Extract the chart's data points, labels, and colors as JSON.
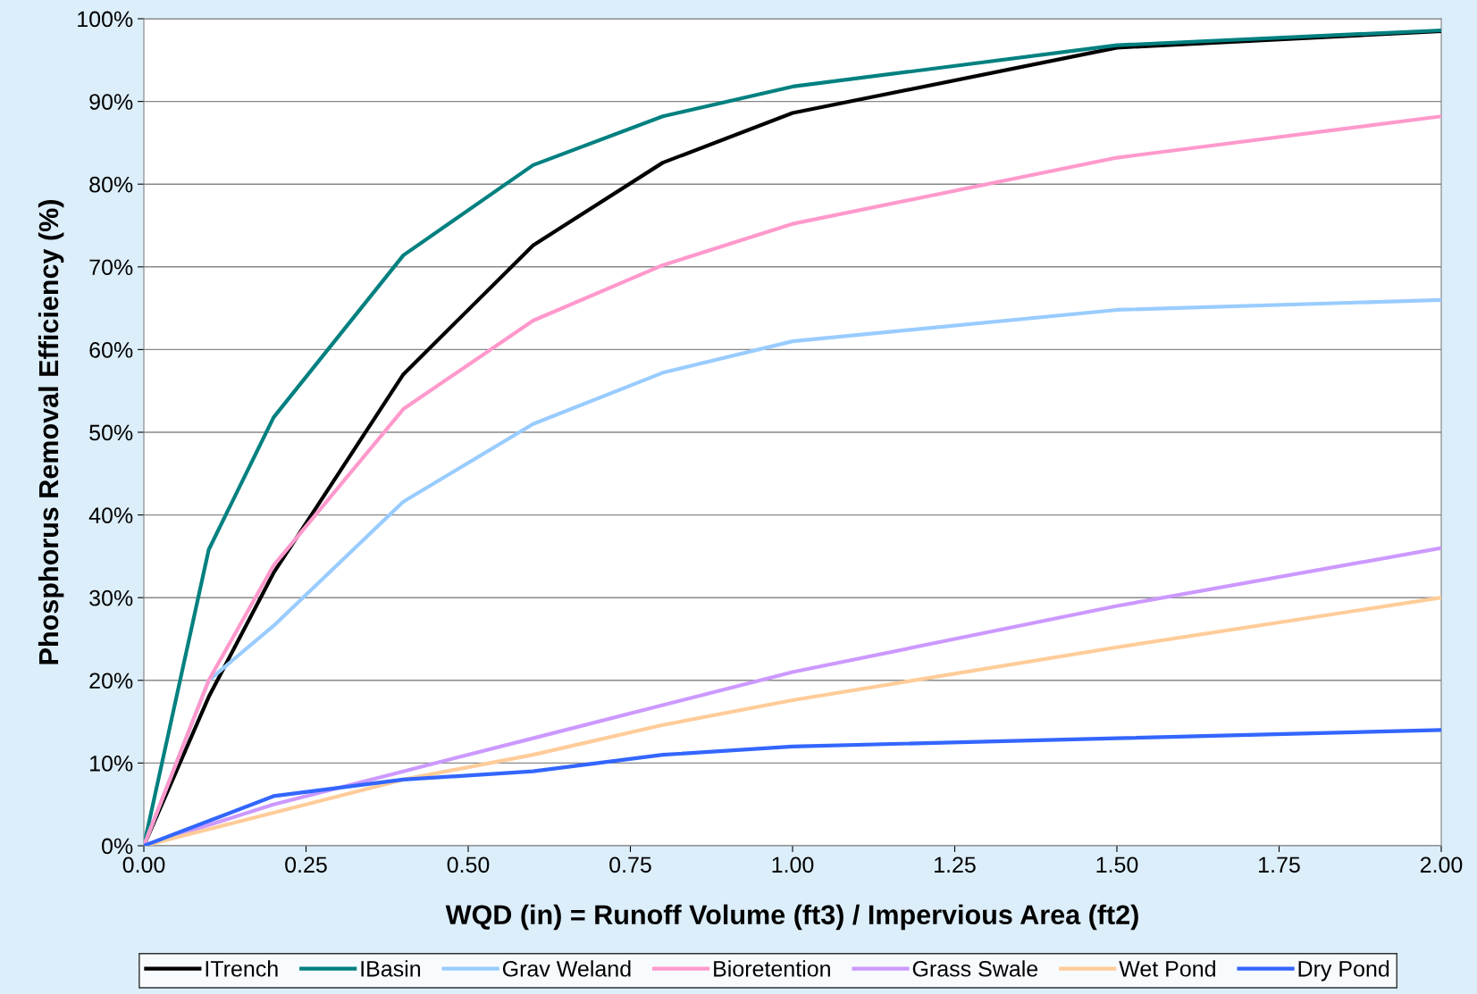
{
  "chart_data": {
    "type": "line",
    "xlabel": "WQD (in) = Runoff Volume (ft3) / Impervious Area (ft2)",
    "ylabel": "Phosphorus Removal Efficiency (%)",
    "x": [
      0,
      0.1,
      0.2,
      0.4,
      0.6,
      0.8,
      1.0,
      1.5,
      2.0
    ],
    "xlim": [
      0,
      2
    ],
    "xticks": [
      {
        "value": 0,
        "label": "0.00"
      },
      {
        "value": 0.25,
        "label": "0.25"
      },
      {
        "value": 0.5,
        "label": "0.50"
      },
      {
        "value": 0.75,
        "label": "0.75"
      },
      {
        "value": 1,
        "label": "1.00"
      },
      {
        "value": 1.25,
        "label": "1.25"
      },
      {
        "value": 1.5,
        "label": "1.50"
      },
      {
        "value": 1.75,
        "label": "1.75"
      },
      {
        "value": 2,
        "label": "2.00"
      }
    ],
    "ylim": [
      0,
      100
    ],
    "yticks": [
      {
        "value": 0,
        "label": "0%"
      },
      {
        "value": 10,
        "label": "10%"
      },
      {
        "value": 20,
        "label": "20%"
      },
      {
        "value": 30,
        "label": "30%"
      },
      {
        "value": 40,
        "label": "40%"
      },
      {
        "value": 50,
        "label": "50%"
      },
      {
        "value": 60,
        "label": "60%"
      },
      {
        "value": 70,
        "label": "70%"
      },
      {
        "value": 80,
        "label": "80%"
      },
      {
        "value": 90,
        "label": "90%"
      },
      {
        "value": 100,
        "label": "100%"
      }
    ],
    "grid": "y",
    "legend": "bottom",
    "marker": "none",
    "line_style": "solid",
    "series": [
      {
        "name": "ITrench",
        "color": "#000000",
        "values": [
          0,
          18,
          33,
          57,
          72.6,
          82.6,
          88.6,
          96.5,
          98.5
        ]
      },
      {
        "name": "IBasin",
        "color": "#008080",
        "values": [
          0,
          35.8,
          51.8,
          71.4,
          82.3,
          88.2,
          91.8,
          96.8,
          98.6
        ]
      },
      {
        "name": "Grav Weland",
        "color": "#99ccff",
        "values": [
          0,
          20,
          26.6,
          41.6,
          51,
          57.2,
          61,
          64.8,
          66
        ]
      },
      {
        "name": "Bioretention",
        "color": "#ff99cc",
        "values": [
          0,
          20,
          33.9,
          52.8,
          63.5,
          70.2,
          75.2,
          83.2,
          88.2
        ]
      },
      {
        "name": "Grass Swale",
        "color": "#cc99ff",
        "values": [
          0,
          2.5,
          5,
          9,
          13,
          17,
          21,
          29,
          36
        ]
      },
      {
        "name": "Wet Pond",
        "color": "#ffcc99",
        "values": [
          0,
          2,
          4,
          8,
          11,
          14.6,
          17.6,
          24,
          30
        ]
      },
      {
        "name": "Dry Pond",
        "color": "#3366ff",
        "values": [
          0,
          3,
          6,
          8,
          9,
          11,
          12,
          13,
          14
        ]
      }
    ]
  }
}
